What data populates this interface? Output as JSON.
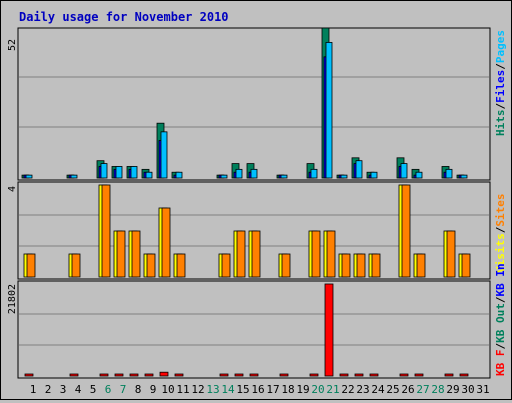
{
  "page": {
    "title": "Daily usage for November 2010"
  },
  "colors": {
    "background": "#c0c0c0",
    "grid": "#808080",
    "hits": "#00805c",
    "files": "#0000ff",
    "pages": "#00c0ff",
    "visits": "#ffff00",
    "sites": "#ff8000",
    "kb_in": "#0000ff",
    "kb_out": "#00805c",
    "kb_f": "#ff0000",
    "title": "#0000c0"
  },
  "chart_data": [
    {
      "type": "bar",
      "panel": "hits-files-pages",
      "y_max_label": "52",
      "ylim": [
        0,
        52
      ],
      "legend": [
        {
          "text": "Hits",
          "color": "#00805c"
        },
        {
          "text": "Files",
          "color": "#0000ff"
        },
        {
          "text": "Pages",
          "color": "#00c0ff"
        }
      ],
      "categories": [
        1,
        2,
        3,
        4,
        5,
        6,
        7,
        8,
        9,
        10,
        11,
        12,
        13,
        14,
        15,
        16,
        17,
        18,
        19,
        20,
        21,
        22,
        23,
        24,
        25,
        26,
        27,
        28,
        29,
        30,
        31
      ],
      "series": [
        {
          "name": "Hits",
          "values": [
            1,
            0,
            0,
            1,
            0,
            6,
            4,
            4,
            3,
            19,
            2,
            0,
            0,
            1,
            5,
            5,
            0,
            1,
            0,
            5,
            52,
            1,
            7,
            2,
            0,
            7,
            3,
            0,
            4,
            1,
            0
          ]
        },
        {
          "name": "Files",
          "values": [
            1,
            0,
            0,
            1,
            0,
            4,
            3,
            3,
            2,
            13,
            1,
            0,
            0,
            1,
            2,
            2,
            0,
            1,
            0,
            2,
            42,
            1,
            5,
            1,
            0,
            4,
            1,
            0,
            2,
            1,
            0
          ]
        },
        {
          "name": "Pages",
          "values": [
            1,
            0,
            0,
            1,
            0,
            5,
            4,
            4,
            2,
            16,
            2,
            0,
            0,
            1,
            3,
            3,
            0,
            1,
            0,
            3,
            47,
            1,
            6,
            2,
            0,
            5,
            2,
            0,
            3,
            1,
            0
          ]
        }
      ]
    },
    {
      "type": "bar",
      "panel": "visits-sites",
      "y_max_label": "4",
      "ylim": [
        0,
        4
      ],
      "legend": [
        {
          "text": "Visits",
          "color": "#ffff00"
        },
        {
          "text": "Sites",
          "color": "#ff8000"
        }
      ],
      "categories": [
        1,
        2,
        3,
        4,
        5,
        6,
        7,
        8,
        9,
        10,
        11,
        12,
        13,
        14,
        15,
        16,
        17,
        18,
        19,
        20,
        21,
        22,
        23,
        24,
        25,
        26,
        27,
        28,
        29,
        30,
        31
      ],
      "series": [
        {
          "name": "Visits",
          "values": [
            1,
            0,
            0,
            1,
            0,
            4,
            2,
            2,
            1,
            3,
            1,
            0,
            0,
            1,
            2,
            2,
            0,
            1,
            0,
            2,
            2,
            1,
            1,
            1,
            0,
            4,
            1,
            0,
            2,
            1,
            0
          ]
        },
        {
          "name": "Sites",
          "values": [
            1,
            0,
            0,
            1,
            0,
            4,
            2,
            2,
            1,
            3,
            1,
            0,
            0,
            1,
            2,
            2,
            0,
            1,
            0,
            2,
            2,
            1,
            1,
            1,
            0,
            4,
            1,
            0,
            2,
            1,
            0
          ]
        }
      ]
    },
    {
      "type": "bar",
      "panel": "kbytes",
      "y_max_label": "21802",
      "ylim": [
        0,
        21802
      ],
      "legend": [
        {
          "text": "KB F",
          "color": "#ff0000"
        },
        {
          "text": "KB Out",
          "color": "#00805c"
        },
        {
          "text": "KB In",
          "color": "#0000ff"
        }
      ],
      "categories": [
        1,
        2,
        3,
        4,
        5,
        6,
        7,
        8,
        9,
        10,
        11,
        12,
        13,
        14,
        15,
        16,
        17,
        18,
        19,
        20,
        21,
        22,
        23,
        24,
        25,
        26,
        27,
        28,
        29,
        30,
        31
      ],
      "series": [
        {
          "name": "KB F",
          "values": [
            150,
            0,
            0,
            150,
            0,
            150,
            150,
            150,
            150,
            900,
            150,
            0,
            0,
            150,
            150,
            150,
            0,
            150,
            0,
            150,
            21802,
            150,
            150,
            150,
            0,
            150,
            150,
            0,
            150,
            150,
            0
          ]
        }
      ]
    }
  ],
  "x_axis": {
    "day_labels": [
      "1",
      "2",
      "3",
      "4",
      "5",
      "6",
      "7",
      "8",
      "9",
      "10",
      "11",
      "12",
      "13",
      "14",
      "15",
      "16",
      "17",
      "18",
      "19",
      "20",
      "21",
      "22",
      "23",
      "24",
      "25",
      "26",
      "27",
      "28",
      "29",
      "30",
      "31"
    ],
    "weekend_days": [
      6,
      7,
      13,
      14,
      20,
      21,
      27,
      28
    ],
    "weekend_color": "#00805c",
    "weekday_color": "#000000"
  }
}
